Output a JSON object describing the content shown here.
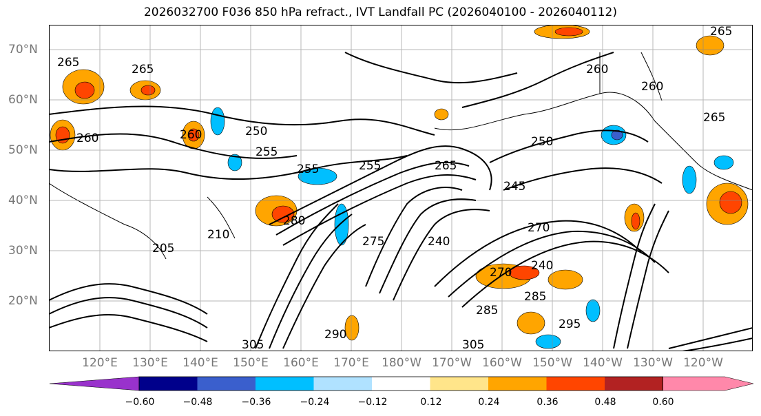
{
  "title": "2026032700 F036 850 hPa refract., IVT Landfall PC (2026040100 - 2026040112)",
  "lat_labels": [
    "70°N",
    "60°N",
    "50°N",
    "40°N",
    "30°N",
    "20°N"
  ],
  "lon_labels": [
    "120°E",
    "130°E",
    "140°E",
    "150°E",
    "160°E",
    "170°E",
    "180°W",
    "170°W",
    "160°W",
    "150°W",
    "140°W",
    "130°W",
    "120°W"
  ],
  "contour_labels": [
    "265",
    "265",
    "260",
    "265",
    "260",
    "260",
    "260",
    "255",
    "255",
    "255",
    "250",
    "265",
    "245",
    "240",
    "270",
    "240",
    "270",
    "275",
    "280",
    "285",
    "285",
    "290",
    "295",
    "305",
    "305",
    "205",
    "210",
    "250",
    "265"
  ],
  "colorbar": {
    "ticks": [
      "−0.60",
      "−0.48",
      "−0.36",
      "−0.24",
      "−0.12",
      "0.12",
      "0.24",
      "0.36",
      "0.48",
      "0.60"
    ],
    "colors": [
      "#9932cc",
      "#00008b",
      "#3a5fcd",
      "#00bfff",
      "#b0e2ff",
      "#ffffff",
      "#ffe58a",
      "#ffa500",
      "#ff4500",
      "#b22222",
      "#ff88aa"
    ]
  },
  "field_colors": {
    "neg_light": "#00bfff",
    "neg_dark": "#3a5fcd",
    "pos_light": "#ffa500",
    "pos_dark": "#ff4500",
    "pos_pale": "#ffe58a"
  }
}
